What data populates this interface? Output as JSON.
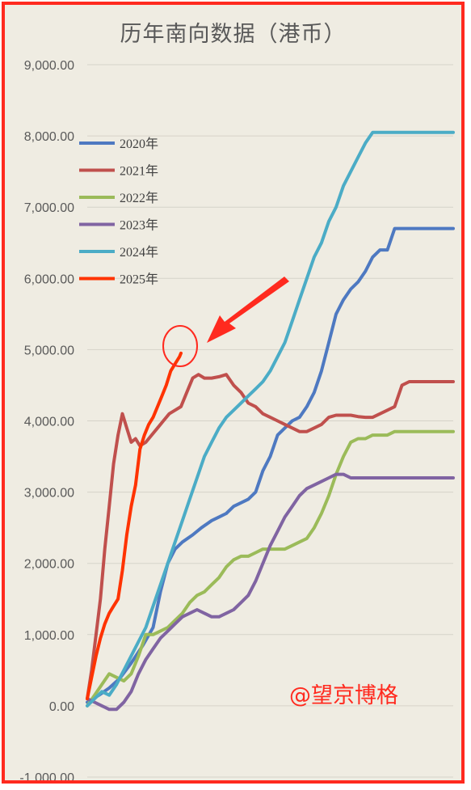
{
  "chart_data": {
    "type": "line",
    "title": "历年南向数据（港币）",
    "ylim": [
      -1000,
      9000
    ],
    "yticks": [
      "-1,000.00",
      "0.00",
      "1,000.00",
      "2,000.00",
      "3,000.00",
      "4,000.00",
      "5,000.00",
      "6,000.00",
      "7,000.00",
      "8,000.00",
      "9,000.00"
    ],
    "ytick_values": [
      -1000,
      0,
      1000,
      2000,
      3000,
      4000,
      5000,
      6000,
      7000,
      8000,
      9000
    ],
    "xlim": [
      0,
      250
    ],
    "grid": true,
    "legend_position": "top-left",
    "series": [
      {
        "name": "2020年",
        "color": "#4e79c1",
        "x": [
          0,
          8,
          15,
          22,
          30,
          38,
          45,
          50,
          55,
          60,
          65,
          72,
          78,
          85,
          90,
          95,
          100,
          105,
          110,
          115,
          120,
          125,
          130,
          135,
          140,
          145,
          150,
          155,
          160,
          165,
          170,
          175,
          180,
          185,
          190,
          195,
          200,
          205,
          210,
          215,
          220,
          225,
          230,
          235,
          240,
          245,
          250
        ],
        "y": [
          50,
          150,
          250,
          380,
          600,
          850,
          1100,
          1600,
          2000,
          2200,
          2300,
          2400,
          2500,
          2600,
          2650,
          2700,
          2800,
          2850,
          2900,
          3000,
          3300,
          3500,
          3800,
          3900,
          4000,
          4050,
          4200,
          4400,
          4700,
          5100,
          5500,
          5700,
          5850,
          5950,
          6100,
          6300,
          6400,
          6400,
          6700,
          6700,
          6700,
          6700,
          6700,
          6700,
          6700,
          6700,
          6700
        ]
      },
      {
        "name": "2021年",
        "color": "#c0504d",
        "x": [
          0,
          3,
          6,
          9,
          12,
          15,
          18,
          21,
          24,
          27,
          30,
          33,
          36,
          40,
          44,
          48,
          52,
          56,
          60,
          64,
          68,
          72,
          76,
          80,
          85,
          90,
          95,
          100,
          105,
          110,
          115,
          120,
          125,
          130,
          135,
          140,
          145,
          150,
          155,
          160,
          165,
          170,
          175,
          180,
          185,
          190,
          195,
          200,
          205,
          210,
          215,
          220,
          225,
          230,
          235,
          240,
          245,
          250
        ],
        "y": [
          100,
          500,
          1000,
          1500,
          2200,
          2800,
          3400,
          3800,
          4100,
          3900,
          3700,
          3750,
          3650,
          3700,
          3800,
          3900,
          4000,
          4100,
          4150,
          4200,
          4400,
          4600,
          4650,
          4600,
          4600,
          4620,
          4650,
          4500,
          4400,
          4250,
          4200,
          4100,
          4050,
          4000,
          3950,
          3900,
          3850,
          3850,
          3900,
          3950,
          4050,
          4080,
          4080,
          4080,
          4060,
          4050,
          4050,
          4100,
          4150,
          4200,
          4500,
          4550,
          4550,
          4550,
          4550,
          4550,
          4550,
          4550
        ]
      },
      {
        "name": "2022年",
        "color": "#9bbb59",
        "x": [
          0,
          5,
          10,
          15,
          20,
          25,
          30,
          35,
          40,
          45,
          50,
          55,
          60,
          65,
          70,
          75,
          80,
          85,
          90,
          95,
          100,
          105,
          110,
          115,
          120,
          125,
          130,
          135,
          140,
          145,
          150,
          155,
          160,
          165,
          170,
          175,
          180,
          185,
          190,
          195,
          200,
          205,
          210,
          215,
          220,
          225,
          230,
          235,
          240,
          245,
          250
        ],
        "y": [
          0,
          150,
          300,
          450,
          400,
          350,
          450,
          700,
          1000,
          1000,
          1050,
          1100,
          1200,
          1300,
          1450,
          1550,
          1600,
          1700,
          1800,
          1950,
          2050,
          2100,
          2100,
          2150,
          2200,
          2200,
          2200,
          2200,
          2250,
          2300,
          2350,
          2500,
          2700,
          2950,
          3250,
          3500,
          3700,
          3750,
          3750,
          3800,
          3800,
          3800,
          3850,
          3850,
          3850,
          3850,
          3850,
          3850,
          3850,
          3850,
          3850
        ]
      },
      {
        "name": "2023年",
        "color": "#8064a2",
        "x": [
          0,
          5,
          10,
          15,
          20,
          25,
          30,
          35,
          40,
          45,
          50,
          55,
          60,
          65,
          70,
          75,
          80,
          85,
          90,
          95,
          100,
          105,
          110,
          115,
          120,
          125,
          130,
          135,
          140,
          145,
          150,
          155,
          160,
          165,
          170,
          175,
          180,
          185,
          190,
          195,
          200,
          205,
          210,
          215,
          220,
          225,
          230,
          235,
          240,
          245,
          250
        ],
        "y": [
          100,
          50,
          0,
          -50,
          -50,
          50,
          200,
          450,
          650,
          800,
          950,
          1050,
          1150,
          1250,
          1300,
          1350,
          1300,
          1250,
          1250,
          1300,
          1350,
          1450,
          1550,
          1750,
          2000,
          2250,
          2450,
          2650,
          2800,
          2950,
          3050,
          3100,
          3150,
          3200,
          3250,
          3250,
          3200,
          3200,
          3200,
          3200,
          3200,
          3200,
          3200,
          3200,
          3200,
          3200,
          3200,
          3200,
          3200,
          3200,
          3200
        ]
      },
      {
        "name": "2024年",
        "color": "#4bacc6",
        "x": [
          0,
          5,
          10,
          15,
          20,
          25,
          30,
          35,
          40,
          45,
          50,
          55,
          60,
          65,
          70,
          75,
          80,
          85,
          90,
          95,
          100,
          105,
          110,
          115,
          120,
          125,
          130,
          135,
          140,
          145,
          150,
          155,
          160,
          165,
          170,
          175,
          180,
          185,
          190,
          195,
          200,
          205,
          210,
          215,
          220,
          225,
          230,
          235,
          240,
          245,
          250
        ],
        "y": [
          0,
          100,
          200,
          150,
          300,
          500,
          700,
          900,
          1100,
          1400,
          1700,
          2000,
          2300,
          2600,
          2900,
          3200,
          3500,
          3700,
          3900,
          4050,
          4150,
          4250,
          4350,
          4450,
          4550,
          4700,
          4900,
          5100,
          5400,
          5700,
          6000,
          6300,
          6500,
          6800,
          7000,
          7300,
          7500,
          7700,
          7900,
          8050,
          8050,
          8050,
          8050,
          8050,
          8050,
          8050,
          8050,
          8050,
          8050,
          8050,
          8050
        ]
      },
      {
        "name": "2025年",
        "color": "#ff3300",
        "x": [
          0,
          3,
          6,
          9,
          12,
          15,
          18,
          21,
          24,
          27,
          30,
          33,
          36,
          39,
          42,
          45,
          48,
          51,
          54,
          57,
          60,
          63,
          64
        ],
        "y": [
          100,
          400,
          700,
          950,
          1150,
          1300,
          1400,
          1500,
          1900,
          2400,
          2800,
          3100,
          3600,
          3800,
          3950,
          4050,
          4200,
          4350,
          4500,
          4700,
          4800,
          4900,
          4950
        ]
      }
    ],
    "watermark": "@望京博格"
  }
}
